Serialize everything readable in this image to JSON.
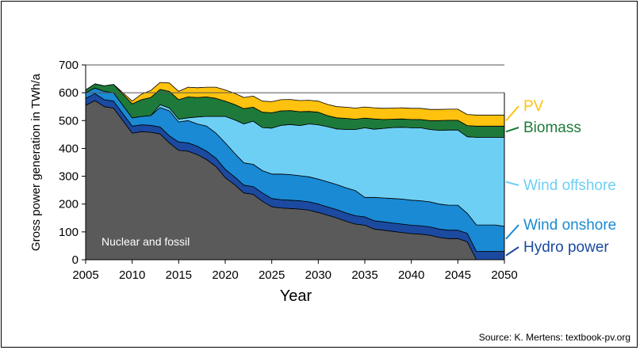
{
  "chart_data": {
    "type": "area",
    "stacked": true,
    "xlabel": "Year",
    "ylabel": "Gross power generation in TWh/a",
    "xlim": [
      2005,
      2050
    ],
    "ylim": [
      0,
      700
    ],
    "xticks": [
      "2005",
      "2010",
      "2015",
      "2020",
      "2025",
      "2030",
      "2035",
      "2040",
      "2045",
      "2050"
    ],
    "yticks": [
      "0",
      "100",
      "200",
      "300",
      "400",
      "500",
      "600",
      "700"
    ],
    "gridlines": [
      600,
      700
    ],
    "annotation": "Nuclear and fossil",
    "x": [
      2005,
      2006,
      2007,
      2008,
      2009,
      2010,
      2011,
      2012,
      2013,
      2014,
      2015,
      2016,
      2017,
      2018,
      2019,
      2020,
      2021,
      2022,
      2023,
      2024,
      2025,
      2026,
      2027,
      2028,
      2029,
      2030,
      2031,
      2032,
      2033,
      2034,
      2035,
      2036,
      2037,
      2038,
      2039,
      2040,
      2041,
      2042,
      2043,
      2044,
      2045,
      2046,
      2047,
      2048,
      2049,
      2050
    ],
    "series": [
      {
        "name": "Nuclear and fossil",
        "color": "#5a5a5a",
        "values": [
          555,
          572,
          550,
          545,
          500,
          455,
          460,
          458,
          452,
          420,
          393,
          390,
          378,
          360,
          335,
          295,
          270,
          240,
          235,
          210,
          190,
          186,
          184,
          182,
          178,
          170,
          160,
          150,
          138,
          128,
          124,
          110,
          106,
          102,
          98,
          94,
          92,
          88,
          80,
          76,
          76,
          65,
          0,
          0,
          0,
          0
        ]
      },
      {
        "name": "Hydro power",
        "color": "#1b4aa0",
        "values": [
          25,
          25,
          25,
          25,
          25,
          25,
          25,
          25,
          25,
          25,
          30,
          30,
          30,
          30,
          30,
          30,
          28,
          28,
          28,
          30,
          30,
          30,
          30,
          30,
          30,
          30,
          30,
          30,
          30,
          30,
          30,
          30,
          30,
          30,
          30,
          30,
          30,
          30,
          30,
          30,
          30,
          30,
          30,
          30,
          30,
          30
        ]
      },
      {
        "name": "Wind onshore",
        "color": "#1a8ad4",
        "values": [
          20,
          20,
          30,
          30,
          30,
          30,
          30,
          35,
          70,
          90,
          72,
          80,
          80,
          90,
          90,
          95,
          85,
          80,
          80,
          80,
          88,
          92,
          92,
          90,
          90,
          90,
          90,
          90,
          90,
          90,
          70,
          84,
          86,
          88,
          90,
          90,
          90,
          90,
          90,
          90,
          90,
          72,
          95,
          95,
          95,
          90
        ]
      },
      {
        "name": "Wind offshore",
        "color": "#6ecff5",
        "values": [
          0,
          0,
          0,
          0,
          0,
          0,
          0,
          0,
          10,
          10,
          10,
          10,
          25,
          35,
          60,
          95,
          120,
          140,
          155,
          155,
          165,
          175,
          180,
          180,
          190,
          195,
          198,
          200,
          210,
          220,
          250,
          245,
          250,
          255,
          258,
          260,
          262,
          260,
          265,
          270,
          270,
          275,
          315,
          315,
          315,
          320
        ]
      },
      {
        "name": "Biomass",
        "color": "#1e7a3a",
        "values": [
          10,
          15,
          20,
          30,
          40,
          50,
          60,
          65,
          55,
          60,
          70,
          75,
          70,
          70,
          65,
          55,
          55,
          55,
          50,
          55,
          55,
          52,
          50,
          50,
          45,
          45,
          40,
          40,
          40,
          37,
          35,
          37,
          32,
          30,
          30,
          30,
          30,
          32,
          35,
          35,
          35,
          40,
          40,
          40,
          40,
          40
        ]
      },
      {
        "name": "PV",
        "color": "#ffc20e",
        "values": [
          0,
          0,
          0,
          0,
          5,
          10,
          20,
          25,
          25,
          30,
          30,
          35,
          35,
          35,
          40,
          40,
          40,
          40,
          40,
          40,
          40,
          40,
          40,
          40,
          40,
          40,
          40,
          40,
          40,
          40,
          40,
          40,
          40,
          40,
          40,
          40,
          40,
          40,
          40,
          40,
          40,
          40,
          40,
          40,
          40,
          40
        ]
      }
    ],
    "legend": [
      {
        "label": "PV",
        "color": "#ffc20e"
      },
      {
        "label": "Biomass",
        "color": "#1e7a3a"
      },
      {
        "label": "Wind offshore",
        "color": "#6ecff5"
      },
      {
        "label": "Wind onshore",
        "color": "#1a8ad4"
      },
      {
        "label": "Hydro power",
        "color": "#1b4aa0"
      }
    ],
    "source": "Source: K. Mertens: textbook-pv.org"
  }
}
